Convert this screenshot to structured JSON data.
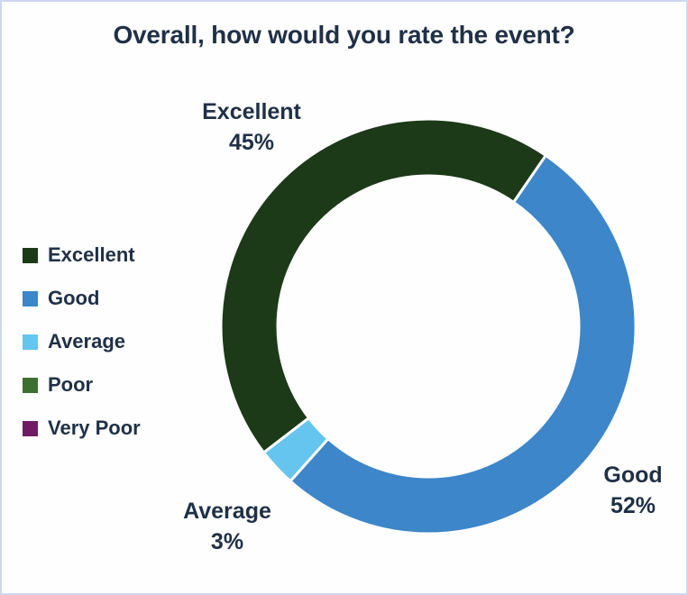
{
  "frame": {
    "background_color": "#fdfefd",
    "border_color": "#ccd8f0"
  },
  "title": "Overall, how would you rate the event?",
  "text_color": "#1f3047",
  "legend": {
    "position": "left",
    "items": [
      {
        "label": "Excellent",
        "color": "#1c3a18"
      },
      {
        "label": "Good",
        "color": "#3c86c9"
      },
      {
        "label": "Average",
        "color": "#66c5ee"
      },
      {
        "label": "Poor",
        "color": "#3d7030"
      },
      {
        "label": "Very Poor",
        "color": "#6e1b64"
      }
    ]
  },
  "chart_data": {
    "type": "pie",
    "subtype": "donut",
    "title": "Overall, how would you rate the event?",
    "categories": [
      "Excellent",
      "Good",
      "Average",
      "Poor",
      "Very Poor"
    ],
    "values": [
      45,
      52,
      3,
      0,
      0
    ],
    "unit": "%",
    "colors": [
      "#1c3a18",
      "#3c86c9",
      "#66c5ee",
      "#3d7030",
      "#6e1b64"
    ],
    "start_angle_deg": 232.5,
    "direction": "clockwise",
    "inner_radius_ratio": 0.726,
    "separator_color": "#ffffff",
    "legend_position": "left",
    "labels": [
      {
        "name": "Excellent",
        "value": "45%"
      },
      {
        "name": "Good",
        "value": "52%"
      },
      {
        "name": "Average",
        "value": "3%"
      }
    ]
  }
}
